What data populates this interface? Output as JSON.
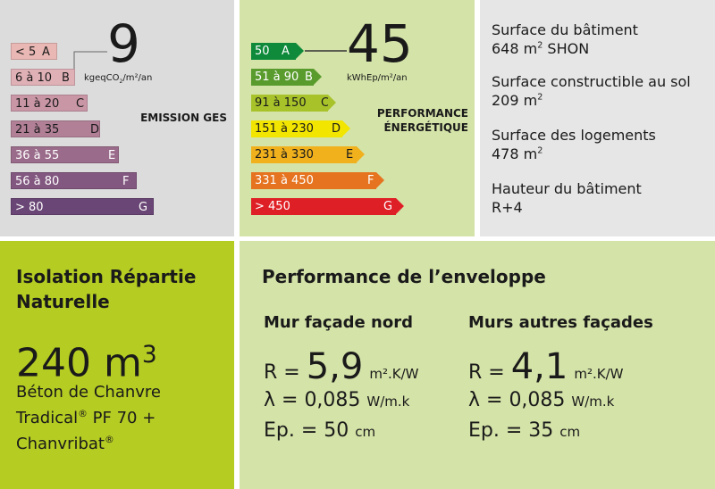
{
  "ges": {
    "value": "9",
    "unit": "kgeqCO",
    "unit_sub": "2",
    "unit_rest": "/m²/an",
    "label": "EMISSION GES",
    "bars": [
      {
        "range": "< 5",
        "letter": "A",
        "color": "#e9b8b4"
      },
      {
        "range": "6 à 10",
        "letter": "B",
        "color": "#dfb0b6"
      },
      {
        "range": "11 à 20",
        "letter": "C",
        "color": "#c996a6"
      },
      {
        "range": "21 à 35",
        "letter": "D",
        "color": "#b18097"
      },
      {
        "range": "36 à 55",
        "letter": "E",
        "color": "#9a6b8a"
      },
      {
        "range": "56 à 80",
        "letter": "F",
        "color": "#825880"
      },
      {
        "range": "> 80",
        "letter": "G",
        "color": "#6a4676"
      }
    ]
  },
  "dpe": {
    "value": "45",
    "unit": "kWhEp/m²/an",
    "label_line1": "PERFORMANCE",
    "label_line2": "ÉNERGÉTIQUE",
    "bars": [
      {
        "range": "50",
        "letter": "A",
        "color": "#0e8a3a"
      },
      {
        "range": "51 à 90",
        "letter": "B",
        "color": "#5a9b2e"
      },
      {
        "range": "91 à 150",
        "letter": "C",
        "color": "#a8c32a"
      },
      {
        "range": "151 à 230",
        "letter": "D",
        "color": "#f2e500"
      },
      {
        "range": "231 à 330",
        "letter": "E",
        "color": "#f0b11d"
      },
      {
        "range": "331 à 450",
        "letter": "F",
        "color": "#e5731f"
      },
      {
        "range": "> 450",
        "letter": "G",
        "color": "#df1f26"
      }
    ]
  },
  "info": [
    {
      "label": "Surface du bâtiment",
      "value": "648 m",
      "sup": "2",
      "rest": " SHON"
    },
    {
      "label": "Surface constructible au sol",
      "value": "209 m",
      "sup": "2",
      "rest": ""
    },
    {
      "label": "Surface des logements",
      "value": "478 m",
      "sup": "2",
      "rest": ""
    },
    {
      "label": "Hauteur du bâtiment",
      "value": "R+4",
      "sup": "",
      "rest": ""
    }
  ],
  "isolation": {
    "title_line1": "Isolation Répartie",
    "title_line2": "Naturelle",
    "volume": "240 m",
    "volume_sup": "3",
    "material_line1": "Béton de Chanvre",
    "material_line2": "Tradical",
    "material_line2_reg": "®",
    "material_line2_rest": " PF 70 +",
    "material_line3": "Chanvribat",
    "material_line3_reg": "®"
  },
  "envelope": {
    "title": "Performance de l’enveloppe",
    "columns": [
      {
        "heading": "Mur façade nord",
        "r_prefix": "R = ",
        "r_value": "5,9",
        "r_unit": "m².K/W",
        "lambda": "λ = 0,085",
        "lambda_unit": "W/m.k",
        "ep": "Ep. = 50",
        "ep_unit": "cm"
      },
      {
        "heading": "Murs autres façades",
        "r_prefix": "R = ",
        "r_value": "4,1",
        "r_unit": "m².K/W",
        "lambda": "λ = 0,085",
        "lambda_unit": "W/m.k",
        "ep": "Ep. = 35",
        "ep_unit": "cm"
      }
    ]
  }
}
